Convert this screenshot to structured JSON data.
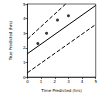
{
  "chart_data": {
    "type": "scatter",
    "x_label": "Time Predicted (hrs)",
    "y_label": "True Predicted (hrs)",
    "xlim": [
      0,
      5
    ],
    "xticks": [
      0,
      1,
      2,
      3,
      4,
      5
    ],
    "ylim": [
      0,
      5
    ],
    "yticks": [
      0,
      1,
      2,
      3,
      4,
      5
    ],
    "grid": false,
    "series": [
      {
        "type": "scatter",
        "marker": "circle",
        "color": "#000000",
        "x": [
          0.76,
          1.4,
          2.2,
          3.0
        ],
        "values": [
          2.3,
          3.0,
          3.9,
          4.2
        ]
      },
      {
        "type": "line",
        "line_style": "solid",
        "color": "#000000",
        "x": [
          0,
          5
        ],
        "values": [
          1.6,
          4.9
        ]
      },
      {
        "type": "line",
        "line_style": "dashed",
        "color": "#000000",
        "x": [
          0,
          2.8
        ],
        "values": [
          2.6,
          5.0
        ]
      },
      {
        "type": "line",
        "line_style": "dashed",
        "color": "#000000",
        "x": [
          0,
          5
        ],
        "values": [
          0.3,
          3.6
        ]
      }
    ]
  }
}
